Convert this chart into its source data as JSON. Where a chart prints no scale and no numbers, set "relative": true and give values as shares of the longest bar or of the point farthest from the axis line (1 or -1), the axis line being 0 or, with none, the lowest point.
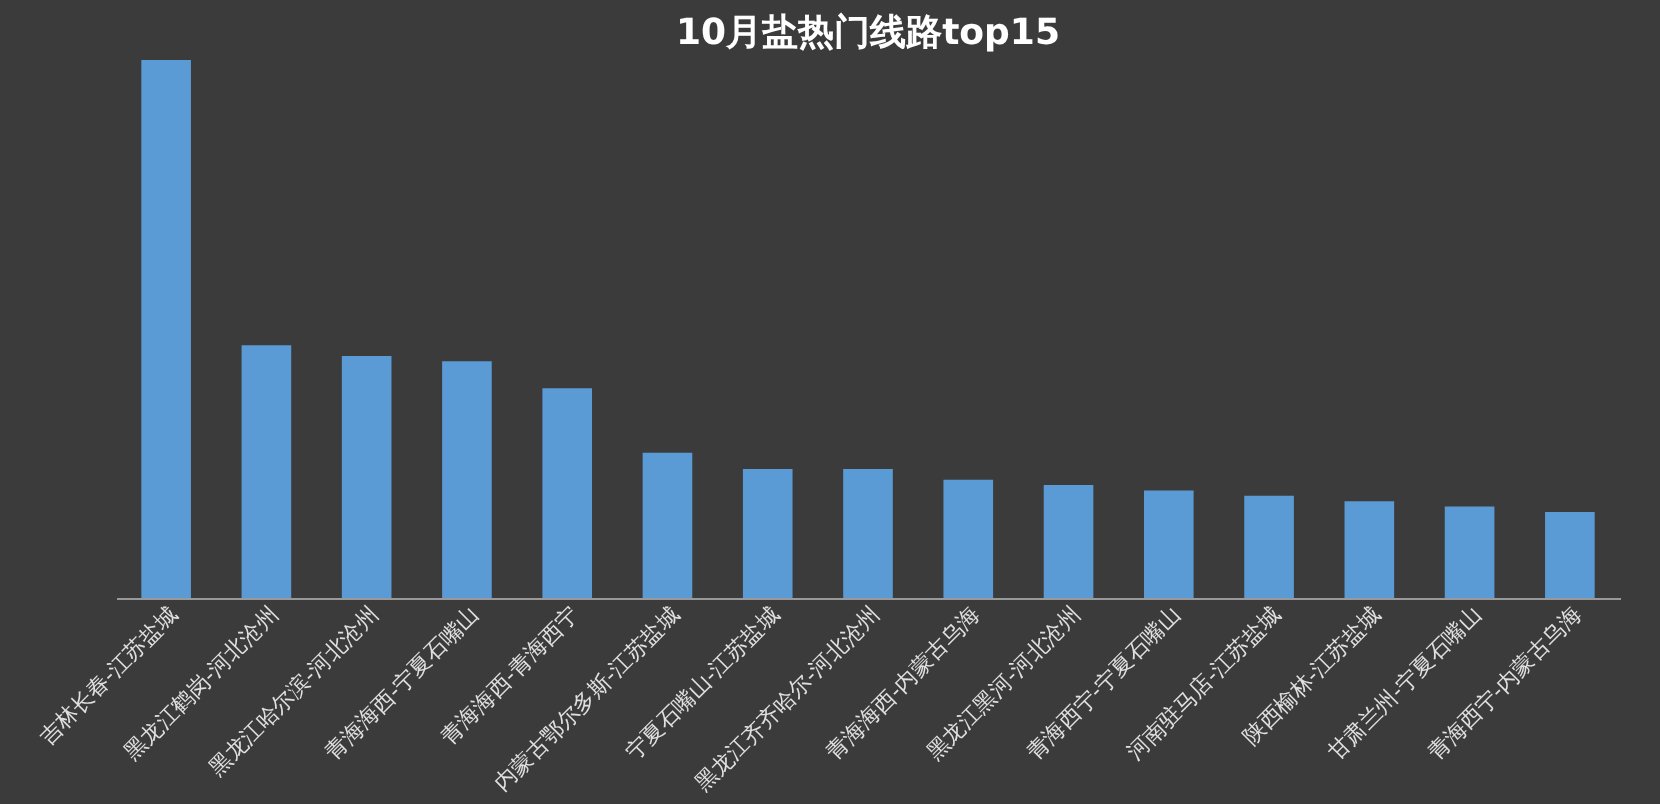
{
  "chart_data": {
    "type": "bar",
    "title": "10月盐热门线路top15",
    "relative": true,
    "categories": [
      "吉林长春-江苏盐城",
      "黑龙江鹤岗-河北沧州",
      "黑龙江哈尔滨-河北沧州",
      "青海海西-宁夏石嘴山",
      "青海海西-青海西宁",
      "内蒙古鄂尔多斯-江苏盐城",
      "宁夏石嘴山-江苏盐城",
      "黑龙江齐齐哈尔-河北沧州",
      "青海海西-内蒙古乌海",
      "黑龙江黑河-河北沧州",
      "青海西宁-宁夏石嘴山",
      "河南驻马店-江苏盐城",
      "陕西榆林-江苏盐城",
      "甘肃兰州-宁夏石嘴山",
      "青海西宁-内蒙古乌海"
    ],
    "values": [
      1,
      0.47,
      0.45,
      0.44,
      0.39,
      0.27,
      0.24,
      0.24,
      0.22,
      0.21,
      0.2,
      0.19,
      0.18,
      0.17,
      0.16
    ],
    "color": "#5b9bd5"
  }
}
